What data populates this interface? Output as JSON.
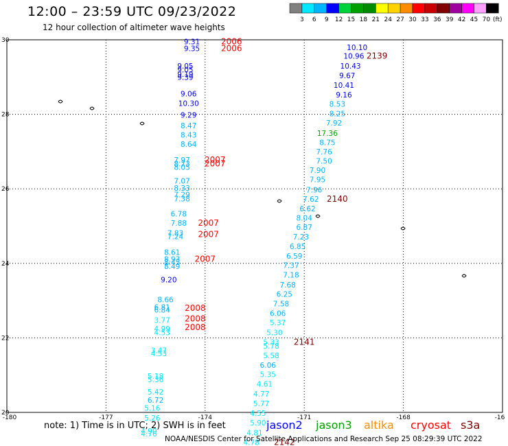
{
  "header": {
    "title": "12:00 – 23:59 UTC 09/23/2022",
    "subtitle": "12 hour collection of altimeter wave heights"
  },
  "colorbar": {
    "labels": [
      "3",
      "6",
      "9",
      "12",
      "15",
      "18",
      "21",
      "24",
      "27",
      "30",
      "33",
      "36",
      "39",
      "42",
      "45",
      "70"
    ],
    "unit": "(ft)",
    "colors": [
      "#808080",
      "#00e8ff",
      "#00b4ff",
      "#0000ff",
      "#00d23c",
      "#00a000",
      "#008c00",
      "#ffff00",
      "#ffd200",
      "#ff8c00",
      "#ff0000",
      "#c80000",
      "#800000",
      "#a000a0",
      "#ff00ff",
      "#ffa0ff",
      "#000000"
    ]
  },
  "footer": {
    "note": "note:  1) Time is in UTC;  2) SWH is in feet",
    "credit": "NOAA/NESDIS Center for Satellite Applications and Research    Sep 25 08:29:39 UTC 2022",
    "satellites": [
      {
        "name": "jason2",
        "color": "#0000ff"
      },
      {
        "name": "jason3",
        "color": "#00a000"
      },
      {
        "name": "altika",
        "color": "#ff8c00"
      },
      {
        "name": "cryosat",
        "color": "#ff0000"
      },
      {
        "name": "s3a",
        "color": "#800000"
      }
    ]
  },
  "chart_data": {
    "type": "scatter",
    "title": "12:00 – 23:59 UTC 09/23/2022",
    "xlim": [
      -180,
      -165
    ],
    "ylim": [
      20,
      30
    ],
    "x_ticks": [
      "-180",
      "-177",
      "-174",
      "-171",
      "-168",
      "-16"
    ],
    "y_ticks": [
      "30",
      "28",
      "26",
      "24",
      "22",
      "20"
    ],
    "grid": true,
    "points": [
      {
        "lon": -174.4,
        "lat": 29.95,
        "v": "9.31",
        "c": "#0000ff"
      },
      {
        "lon": -174.4,
        "lat": 29.77,
        "v": "9.35",
        "c": "#0000ff"
      },
      {
        "lon": -174.6,
        "lat": 29.3,
        "v": "9.05",
        "c": "#0000ff"
      },
      {
        "lon": -174.6,
        "lat": 29.2,
        "v": "9.05",
        "c": "#0000ff"
      },
      {
        "lon": -174.6,
        "lat": 29.08,
        "v": "9.19",
        "c": "#0000ff"
      },
      {
        "lon": -174.6,
        "lat": 29.0,
        "v": "9.39",
        "c": "#0000ff"
      },
      {
        "lon": -174.5,
        "lat": 28.55,
        "v": "9.06",
        "c": "#0000ff"
      },
      {
        "lon": -174.5,
        "lat": 28.3,
        "v": "10.30",
        "c": "#0000ff"
      },
      {
        "lon": -174.5,
        "lat": 27.98,
        "v": "9.29",
        "c": "#0000ff"
      },
      {
        "lon": -174.5,
        "lat": 27.7,
        "v": "8.47",
        "c": "#00b4ff"
      },
      {
        "lon": -174.5,
        "lat": 27.45,
        "v": "8.43",
        "c": "#00b4ff"
      },
      {
        "lon": -174.5,
        "lat": 27.2,
        "v": "8.64",
        "c": "#00b4ff"
      },
      {
        "lon": -174.7,
        "lat": 26.78,
        "v": "7.97",
        "c": "#00b4ff"
      },
      {
        "lon": -174.7,
        "lat": 26.68,
        "v": "8.73",
        "c": "#00b4ff"
      },
      {
        "lon": -174.7,
        "lat": 26.58,
        "v": "8.05",
        "c": "#00b4ff"
      },
      {
        "lon": -174.7,
        "lat": 26.22,
        "v": "7.07",
        "c": "#00b4ff"
      },
      {
        "lon": -174.7,
        "lat": 26.02,
        "v": "8.33",
        "c": "#00b4ff"
      },
      {
        "lon": -174.7,
        "lat": 25.85,
        "v": "7.29",
        "c": "#00b4ff"
      },
      {
        "lon": -174.7,
        "lat": 25.74,
        "v": "7.38",
        "c": "#00b4ff"
      },
      {
        "lon": -174.8,
        "lat": 25.33,
        "v": "6.78",
        "c": "#00b4ff"
      },
      {
        "lon": -174.8,
        "lat": 25.08,
        "v": "7.88",
        "c": "#00b4ff"
      },
      {
        "lon": -174.9,
        "lat": 24.82,
        "v": "7.83",
        "c": "#00b4ff"
      },
      {
        "lon": -174.9,
        "lat": 24.72,
        "v": "7.24",
        "c": "#00b4ff"
      },
      {
        "lon": -175.0,
        "lat": 24.3,
        "v": "8.61",
        "c": "#00b4ff"
      },
      {
        "lon": -175.0,
        "lat": 24.12,
        "v": "8.93",
        "c": "#00b4ff"
      },
      {
        "lon": -175.0,
        "lat": 24.03,
        "v": "8.45",
        "c": "#00b4ff"
      },
      {
        "lon": -175.0,
        "lat": 23.92,
        "v": "8.49",
        "c": "#00b4ff"
      },
      {
        "lon": -175.1,
        "lat": 23.56,
        "v": "9.20",
        "c": "#0000ff"
      },
      {
        "lon": -175.2,
        "lat": 23.03,
        "v": "8.66",
        "c": "#00b4ff"
      },
      {
        "lon": -175.3,
        "lat": 22.83,
        "v": "6.81",
        "c": "#00b4ff"
      },
      {
        "lon": -175.3,
        "lat": 22.75,
        "v": "6.84",
        "c": "#00b4ff"
      },
      {
        "lon": -175.3,
        "lat": 22.48,
        "v": "3.77",
        "c": "#00e8ff"
      },
      {
        "lon": -175.3,
        "lat": 22.25,
        "v": "4.99",
        "c": "#00e8ff"
      },
      {
        "lon": -175.3,
        "lat": 22.15,
        "v": "4.53",
        "c": "#00e8ff"
      },
      {
        "lon": -175.4,
        "lat": 21.67,
        "v": "3.47",
        "c": "#00e8ff"
      },
      {
        "lon": -175.4,
        "lat": 21.58,
        "v": "4.53",
        "c": "#00e8ff"
      },
      {
        "lon": -175.5,
        "lat": 20.98,
        "v": "5.18",
        "c": "#00e8ff"
      },
      {
        "lon": -175.5,
        "lat": 20.88,
        "v": "5.36",
        "c": "#00e8ff"
      },
      {
        "lon": -175.5,
        "lat": 20.55,
        "v": "5.42",
        "c": "#00e8ff"
      },
      {
        "lon": -175.5,
        "lat": 20.33,
        "v": "6.72",
        "c": "#00b4ff"
      },
      {
        "lon": -175.6,
        "lat": 20.12,
        "v": "5.16",
        "c": "#00e8ff"
      },
      {
        "lon": -175.6,
        "lat": 19.85,
        "v": "5.26",
        "c": "#00e8ff"
      },
      {
        "lon": -175.7,
        "lat": 19.5,
        "v": "4.90",
        "c": "#00e8ff"
      },
      {
        "lon": -175.7,
        "lat": 19.43,
        "v": "4.76",
        "c": "#00e8ff"
      },
      {
        "lon": -169.4,
        "lat": 29.8,
        "v": "10.10",
        "c": "#0000ff"
      },
      {
        "lon": -169.5,
        "lat": 29.57,
        "v": "10.96",
        "c": "#0000ff"
      },
      {
        "lon": -169.6,
        "lat": 29.3,
        "v": "10.43",
        "c": "#0000ff"
      },
      {
        "lon": -169.7,
        "lat": 29.04,
        "v": "9.67",
        "c": "#0000ff"
      },
      {
        "lon": -169.8,
        "lat": 28.78,
        "v": "10.41",
        "c": "#0000ff"
      },
      {
        "lon": -169.8,
        "lat": 28.53,
        "v": "9.16",
        "c": "#0000ff"
      },
      {
        "lon": -170.0,
        "lat": 28.28,
        "v": "8.53",
        "c": "#00b4ff"
      },
      {
        "lon": -170.0,
        "lat": 28.02,
        "v": "8.25",
        "c": "#00b4ff"
      },
      {
        "lon": -170.1,
        "lat": 27.77,
        "v": "7.92",
        "c": "#00b4ff"
      },
      {
        "lon": -170.3,
        "lat": 27.5,
        "v": "17.36",
        "c": "#00a000"
      },
      {
        "lon": -170.3,
        "lat": 27.25,
        "v": "8.75",
        "c": "#00b4ff"
      },
      {
        "lon": -170.4,
        "lat": 27.0,
        "v": "7.76",
        "c": "#00b4ff"
      },
      {
        "lon": -170.4,
        "lat": 26.75,
        "v": "7.50",
        "c": "#00b4ff"
      },
      {
        "lon": -170.6,
        "lat": 26.5,
        "v": "7.90",
        "c": "#00b4ff"
      },
      {
        "lon": -170.6,
        "lat": 26.25,
        "v": "7.95",
        "c": "#00b4ff"
      },
      {
        "lon": -170.7,
        "lat": 25.98,
        "v": "7.96",
        "c": "#00b4ff"
      },
      {
        "lon": -170.8,
        "lat": 25.73,
        "v": "7.62",
        "c": "#00b4ff"
      },
      {
        "lon": -170.9,
        "lat": 25.47,
        "v": "6.62",
        "c": "#00b4ff"
      },
      {
        "lon": -171.0,
        "lat": 25.22,
        "v": "8.04",
        "c": "#00b4ff"
      },
      {
        "lon": -171.0,
        "lat": 24.97,
        "v": "6.87",
        "c": "#00b4ff"
      },
      {
        "lon": -171.1,
        "lat": 24.71,
        "v": "7.23",
        "c": "#00b4ff"
      },
      {
        "lon": -171.2,
        "lat": 24.46,
        "v": "6.85",
        "c": "#00b4ff"
      },
      {
        "lon": -171.3,
        "lat": 24.2,
        "v": "6.59",
        "c": "#00b4ff"
      },
      {
        "lon": -171.4,
        "lat": 23.95,
        "v": "7.37",
        "c": "#00b4ff"
      },
      {
        "lon": -171.4,
        "lat": 23.69,
        "v": "7.18",
        "c": "#00b4ff"
      },
      {
        "lon": -171.5,
        "lat": 23.43,
        "v": "7.68",
        "c": "#00b4ff"
      },
      {
        "lon": -171.6,
        "lat": 23.18,
        "v": "6.25",
        "c": "#00b4ff"
      },
      {
        "lon": -171.7,
        "lat": 22.92,
        "v": "7.58",
        "c": "#00b4ff"
      },
      {
        "lon": -171.8,
        "lat": 22.66,
        "v": "6.06",
        "c": "#00b4ff"
      },
      {
        "lon": -171.8,
        "lat": 22.41,
        "v": "5.37",
        "c": "#00e8ff"
      },
      {
        "lon": -171.9,
        "lat": 22.15,
        "v": "5.30",
        "c": "#00e8ff"
      },
      {
        "lon": -172.0,
        "lat": 21.89,
        "v": "5.33",
        "c": "#00e8ff"
      },
      {
        "lon": -172.0,
        "lat": 21.79,
        "v": "5.78",
        "c": "#00e8ff"
      },
      {
        "lon": -172.0,
        "lat": 21.53,
        "v": "5.58",
        "c": "#00e8ff"
      },
      {
        "lon": -172.1,
        "lat": 21.27,
        "v": "6.06",
        "c": "#00b4ff"
      },
      {
        "lon": -172.1,
        "lat": 21.02,
        "v": "5.35",
        "c": "#00e8ff"
      },
      {
        "lon": -172.2,
        "lat": 20.76,
        "v": "4.61",
        "c": "#00e8ff"
      },
      {
        "lon": -172.3,
        "lat": 20.5,
        "v": "4.77",
        "c": "#00e8ff"
      },
      {
        "lon": -172.3,
        "lat": 20.24,
        "v": "5.77",
        "c": "#00e8ff"
      },
      {
        "lon": -172.4,
        "lat": 19.98,
        "v": "4.55",
        "c": "#00e8ff"
      },
      {
        "lon": -172.4,
        "lat": 19.72,
        "v": "5.90",
        "c": "#00e8ff"
      },
      {
        "lon": -172.5,
        "lat": 19.46,
        "v": "4.81",
        "c": "#00e8ff"
      },
      {
        "lon": -172.6,
        "lat": 19.2,
        "v": "4.78",
        "c": "#00e8ff"
      }
    ],
    "time_labels": [
      {
        "lon": -173.2,
        "lat": 29.95,
        "text": "2006",
        "color": "#ff0000"
      },
      {
        "lon": -173.2,
        "lat": 29.77,
        "text": "2006",
        "color": "#ff0000"
      },
      {
        "lon": -168.8,
        "lat": 29.57,
        "text": "2139",
        "color": "#800000"
      },
      {
        "lon": -173.7,
        "lat": 26.78,
        "text": "2007",
        "color": "#ff0000"
      },
      {
        "lon": -173.7,
        "lat": 26.68,
        "text": "2007",
        "color": "#ff0000"
      },
      {
        "lon": -170.0,
        "lat": 25.73,
        "text": "2140",
        "color": "#800000"
      },
      {
        "lon": -173.9,
        "lat": 25.08,
        "text": "2007",
        "color": "#ff0000"
      },
      {
        "lon": -173.9,
        "lat": 24.78,
        "text": "2007",
        "color": "#ff0000"
      },
      {
        "lon": -174.0,
        "lat": 24.12,
        "text": "2007",
        "color": "#ff0000"
      },
      {
        "lon": -174.3,
        "lat": 22.8,
        "text": "2008",
        "color": "#ff0000"
      },
      {
        "lon": -174.3,
        "lat": 22.51,
        "text": "2008",
        "color": "#ff0000"
      },
      {
        "lon": -174.3,
        "lat": 22.28,
        "text": "2008",
        "color": "#ff0000"
      },
      {
        "lon": -171.0,
        "lat": 21.89,
        "text": "2141",
        "color": "#800000"
      },
      {
        "lon": -171.6,
        "lat": 19.2,
        "text": "2142",
        "color": "#800000"
      }
    ]
  }
}
